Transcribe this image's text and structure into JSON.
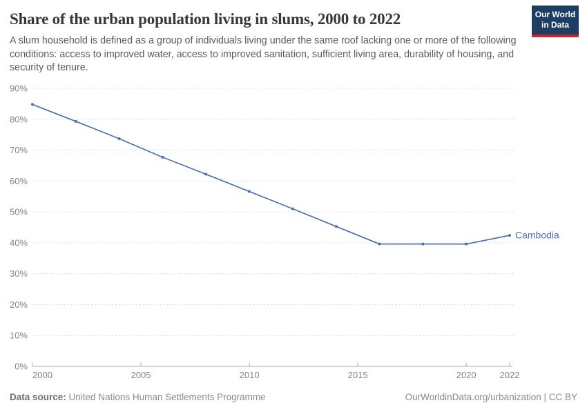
{
  "header": {
    "title": "Share of the urban population living in slums, 2000 to 2022",
    "subtitle": "A slum household is defined as a group of individuals living under the same roof lacking one or more of the following conditions: access to improved water, access to improved sanitation, sufficient living area, durability of housing, and security of tenure.",
    "logo": {
      "line1": "Our World",
      "line2": "in Data",
      "bg_color": "#1d3d63",
      "accent_color": "#c2262e"
    }
  },
  "chart_data": {
    "type": "line",
    "title": "Share of the urban population living in slums, 2000 to 2022",
    "xlabel": "",
    "ylabel": "",
    "xlim": [
      2000,
      2022
    ],
    "ylim": [
      0,
      90
    ],
    "x_ticks": [
      2000,
      2005,
      2010,
      2015,
      2020,
      2022
    ],
    "y_ticks": [
      0,
      10,
      20,
      30,
      40,
      50,
      60,
      70,
      80,
      90
    ],
    "y_tick_suffix": "%",
    "grid": true,
    "grid_style": "dashed",
    "legend_position": "end-of-line",
    "series": [
      {
        "name": "Cambodia",
        "color": "#4e6fae",
        "x": [
          2000,
          2002,
          2004,
          2006,
          2008,
          2010,
          2012,
          2014,
          2016,
          2018,
          2020,
          2022
        ],
        "values": [
          84.8,
          79.3,
          73.7,
          67.7,
          62.2,
          56.6,
          51.0,
          45.3,
          39.6,
          39.6,
          39.6,
          42.4
        ]
      }
    ],
    "colors": {
      "gridline": "#dcdcdc",
      "axis": "#a8a8a8",
      "tick_label": "#858585"
    }
  },
  "footer": {
    "datasource_label": "Data source:",
    "datasource_value": "United Nations Human Settlements Programme",
    "rights": "OurWorldinData.org/urbanization | CC BY"
  }
}
